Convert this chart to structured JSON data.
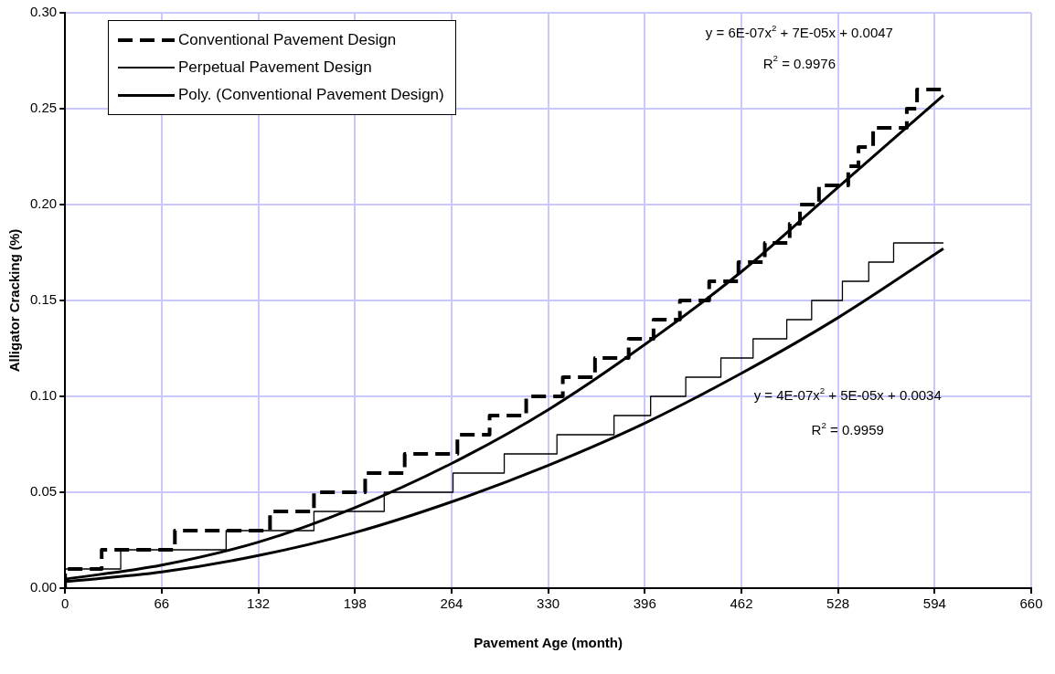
{
  "chart_data": {
    "type": "step",
    "xlabel": "Pavement Age (month)",
    "ylabel": "Alligator Cracking (%)",
    "xlim": [
      0,
      660
    ],
    "xticks": [
      0,
      66,
      132,
      198,
      264,
      330,
      396,
      462,
      528,
      594,
      660
    ],
    "ylim": [
      0,
      0.3
    ],
    "yticks": [
      {
        "value": 0,
        "label": "0.00"
      },
      {
        "value": 0.05,
        "label": "0.05"
      },
      {
        "value": 0.1,
        "label": "0.10"
      },
      {
        "value": 0.15,
        "label": "0.15"
      },
      {
        "value": 0.2,
        "label": "0.20"
      },
      {
        "value": 0.25,
        "label": "0.25"
      },
      {
        "value": 0.3,
        "label": "0.30"
      }
    ],
    "grid": true,
    "legend": "top left",
    "series": [
      {
        "name": "Conventional Pavement Design",
        "color": "#000000",
        "line_style": "dashed",
        "x": [
          0,
          25,
          75,
          140,
          170,
          205,
          232,
          268,
          290,
          315,
          340,
          362,
          385,
          402,
          420,
          440,
          460,
          478,
          495,
          502,
          515,
          535,
          542,
          552,
          575,
          582,
          592,
          600
        ],
        "values": [
          0,
          0.01,
          0.02,
          0.03,
          0.04,
          0.05,
          0.06,
          0.07,
          0.08,
          0.09,
          0.1,
          0.11,
          0.12,
          0.13,
          0.14,
          0.15,
          0.16,
          0.17,
          0.18,
          0.19,
          0.2,
          0.21,
          0.22,
          0.23,
          0.24,
          0.25,
          0.26,
          0.26
        ]
      },
      {
        "name": "Perpetual Pavement Design",
        "color": "#000000",
        "line_style": "solid",
        "x": [
          0,
          38,
          110,
          170,
          218,
          265,
          300,
          336,
          375,
          400,
          424,
          448,
          470,
          493,
          510,
          531,
          549,
          566,
          583,
          600
        ],
        "values": [
          0,
          0.01,
          0.02,
          0.03,
          0.04,
          0.05,
          0.06,
          0.07,
          0.08,
          0.09,
          0.1,
          0.11,
          0.12,
          0.13,
          0.14,
          0.15,
          0.16,
          0.17,
          0.18,
          0.18
        ]
      },
      {
        "name": "Poly. (Conventional Pavement Design)",
        "type": "line",
        "color": "#000000",
        "line_style": "solid",
        "x": [
          0,
          66,
          132,
          198,
          264,
          330,
          396,
          462,
          528,
          600
        ],
        "values": [
          0.0047,
          0.012,
          0.024,
          0.042,
          0.065,
          0.093,
          0.127,
          0.165,
          0.209,
          0.257
        ]
      },
      {
        "type": "line",
        "color": "#000000",
        "line_style": "solid",
        "x": [
          0,
          66,
          132,
          198,
          264,
          330,
          396,
          462,
          528,
          600
        ],
        "values": [
          0.0034,
          0.0084,
          0.017,
          0.029,
          0.045,
          0.064,
          0.086,
          0.112,
          0.141,
          0.177
        ]
      }
    ],
    "annotations": [
      "y = 6E-07x$^{2}$ + 7E-05x + 0.0047",
      "R$^{2}$ = 0.9976",
      "y = 4E-07x$^{2}$ + 5E-05x + 0.0034",
      "R$^{2}$ = 0.9959"
    ]
  }
}
